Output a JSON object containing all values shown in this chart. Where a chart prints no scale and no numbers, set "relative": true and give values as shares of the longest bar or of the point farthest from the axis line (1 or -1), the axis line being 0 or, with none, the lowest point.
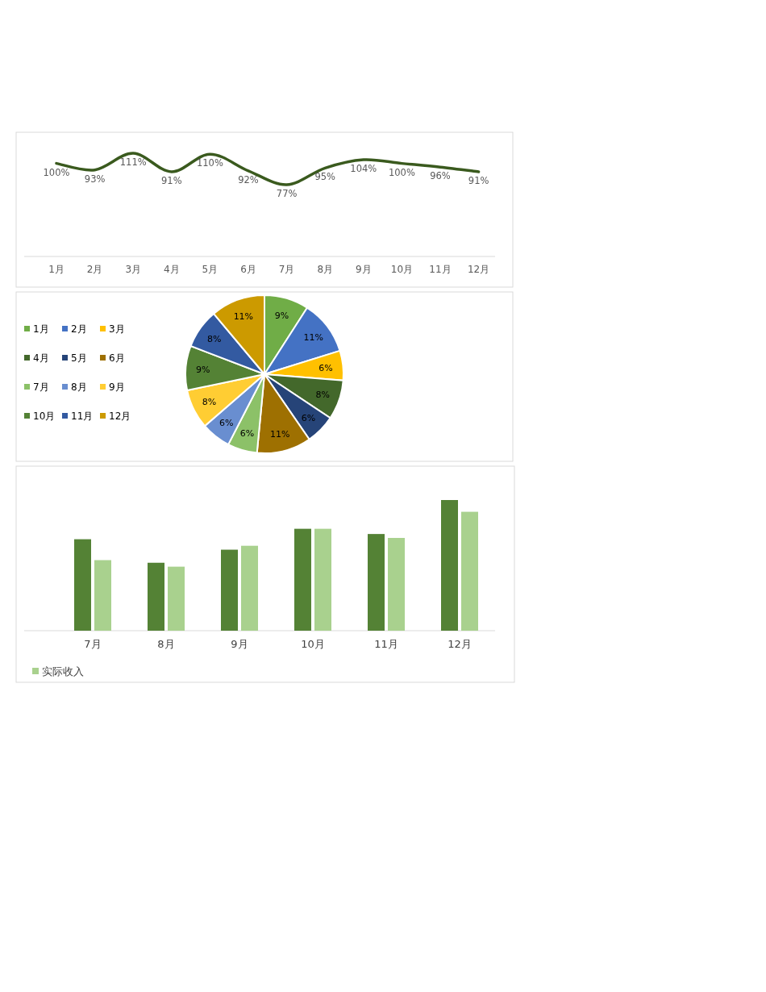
{
  "chart_data": [
    {
      "type": "line",
      "categories": [
        "1月",
        "2月",
        "3月",
        "4月",
        "5月",
        "6月",
        "7月",
        "8月",
        "9月",
        "10月",
        "11月",
        "12月"
      ],
      "values": [
        100,
        93,
        111,
        91,
        110,
        92,
        77,
        95,
        104,
        100,
        96,
        91
      ],
      "value_labels": [
        "100%",
        "93%",
        "111%",
        "91%",
        "110%",
        "92%",
        "77%",
        "95%",
        "104%",
        "100%",
        "96%",
        "91%"
      ],
      "color": "#3a5a1e",
      "marker": "none"
    },
    {
      "type": "pie",
      "categories": [
        "1月",
        "2月",
        "3月",
        "4月",
        "5月",
        "6月",
        "7月",
        "8月",
        "9月",
        "10月",
        "11月",
        "12月"
      ],
      "values": [
        9,
        11,
        6,
        8,
        6,
        11,
        6,
        6,
        8,
        9,
        8,
        11
      ],
      "value_labels": [
        "9%",
        "11%",
        "6%",
        "8%",
        "6%",
        "11%",
        "6%",
        "6%",
        "8%",
        "9%",
        "8%",
        "11%"
      ],
      "colors": [
        "#70ad47",
        "#4472c4",
        "#ffc000",
        "#43682b",
        "#264478",
        "#9e7001",
        "#8cc168",
        "#698ed0",
        "#ffcd33",
        "#548235",
        "#335aa1",
        "#cc9a00"
      ],
      "legend": "left"
    },
    {
      "type": "bar",
      "relative": true,
      "categories": [
        "7月",
        "8月",
        "9月",
        "10月",
        "11月",
        "12月"
      ],
      "legend": "bottom",
      "series": [
        {
          "color": "#548235",
          "values": [
            0.7,
            0.52,
            0.62,
            0.78,
            0.74,
            1
          ]
        },
        {
          "name": "实际收入",
          "color": "#a9d18e",
          "values": [
            0.54,
            0.49,
            0.65,
            0.78,
            0.71,
            0.91
          ]
        }
      ]
    }
  ]
}
